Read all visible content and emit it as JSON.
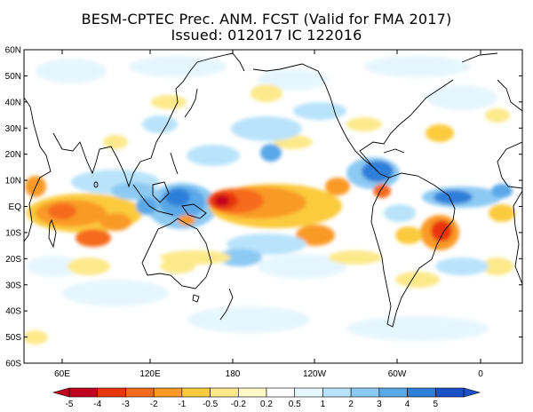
{
  "title": {
    "line1": "BESM-CPTEC Prec. ANM. FCST  (Valid for FMA 2017)",
    "line2": "Issued:  012017 IC 122016"
  },
  "axes": {
    "lat_labels": [
      "60N",
      "50N",
      "40N",
      "30N",
      "20N",
      "10N",
      "EQ",
      "10S",
      "20S",
      "30S",
      "40S",
      "50S",
      "60S"
    ],
    "lon_labels": [
      "60E",
      "120E",
      "180",
      "120W",
      "60W",
      "0"
    ]
  },
  "colorbar": {
    "labels": [
      "-5",
      "-4",
      "-3",
      "-2",
      "-1",
      "-0.5",
      "-0.2",
      "0.2",
      "0.5",
      "1",
      "2",
      "3",
      "4",
      "5"
    ],
    "colors": [
      "#c1001f",
      "#e8360c",
      "#f56b1d",
      "#f99a25",
      "#fbcb3c",
      "#fde98a",
      "#fff9c8",
      "#ffffff",
      "#e6f6ff",
      "#b9e3fb",
      "#8ccaf3",
      "#5aa8e8",
      "#2f7fd9",
      "#1b50c8"
    ]
  }
}
